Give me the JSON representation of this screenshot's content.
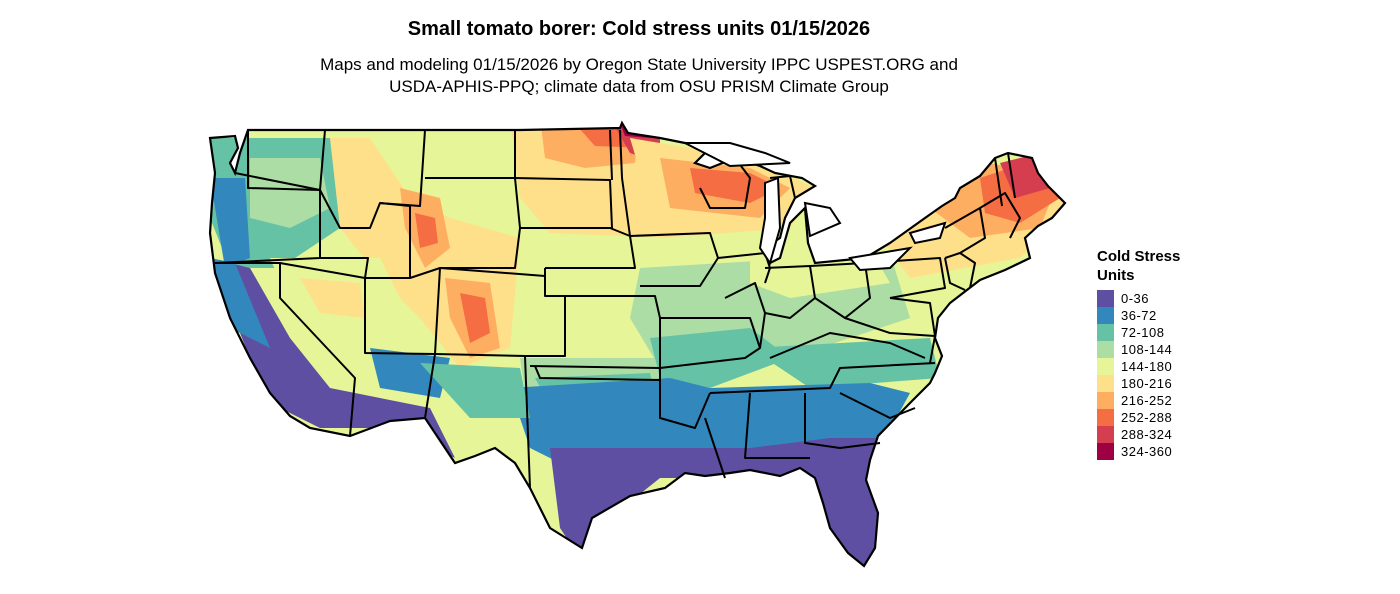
{
  "header": {
    "title": "Small tomato borer: Cold stress units 01/15/2026",
    "subtitle_line1": "Maps and modeling 01/15/2026 by Oregon State University IPPC USPEST.ORG and",
    "subtitle_line2": "USDA-APHIS-PPQ; climate data from OSU PRISM Climate Group"
  },
  "legend": {
    "title_line1": "Cold Stress",
    "title_line2": "Units",
    "items": [
      {
        "label": "0-36",
        "color": "#5E4FA2"
      },
      {
        "label": "36-72",
        "color": "#3288BD"
      },
      {
        "label": "72-108",
        "color": "#66C2A5"
      },
      {
        "label": "108-144",
        "color": "#ABDDA4"
      },
      {
        "label": "144-180",
        "color": "#E6F598"
      },
      {
        "label": "180-216",
        "color": "#FEE08B"
      },
      {
        "label": "216-252",
        "color": "#FDAE61"
      },
      {
        "label": "252-288",
        "color": "#F46D43"
      },
      {
        "label": "288-324",
        "color": "#D53E4F"
      },
      {
        "label": "324-360",
        "color": "#9E0142"
      }
    ]
  },
  "map": {
    "region": "Contiguous United States",
    "border_color": "#000000"
  }
}
